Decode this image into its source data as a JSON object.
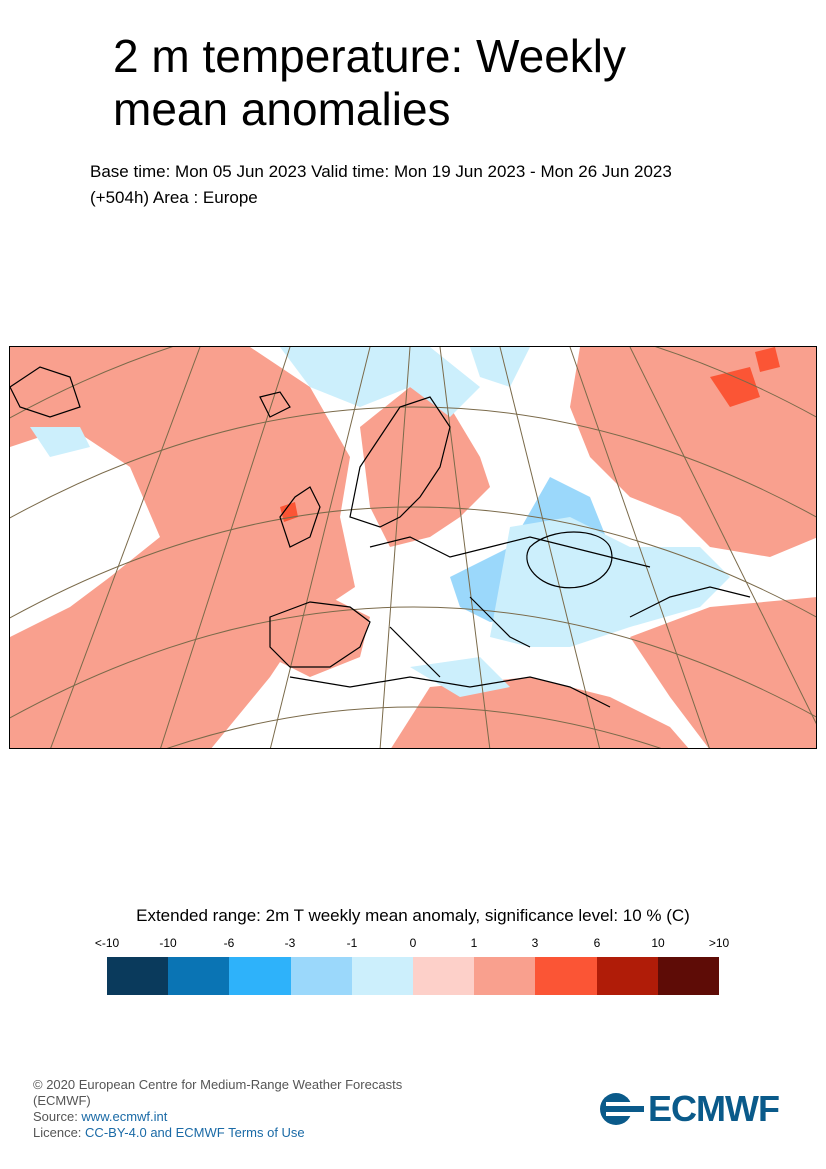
{
  "title": "2 m temperature: Weekly mean anomalies",
  "subtitle_line1": "Base time: Mon 05 Jun 2023 Valid time: Mon 19 Jun 2023 - Mon 26 Jun 2023",
  "subtitle_line2": "(+504h) Area : Europe",
  "map": {
    "area": "Europe"
  },
  "legend": {
    "title": "Extended range: 2m T weekly mean anomaly, significance level: 10 % (C)",
    "ticks": [
      "<-10",
      "-10",
      "-6",
      "-3",
      "-1",
      "0",
      "1",
      "3",
      "6",
      "10",
      ">10"
    ],
    "colors": [
      "#0a3a5c",
      "#0a74b4",
      "#2eb2fa",
      "#9bd8fb",
      "#cceffc",
      "#fdd0c9",
      "#f9a08e",
      "#fb5535",
      "#b01c08",
      "#5e0c06"
    ]
  },
  "footer": {
    "copyright": "© 2020 European Centre for Medium-Range Weather Forecasts",
    "org_abbr": "(ECMWF)",
    "source_label": "Source: ",
    "source_link": "www.ecmwf.int",
    "licence_label": "Licence: ",
    "licence_link": "CC-BY-4.0 and ECMWF Terms of Use"
  },
  "logo": {
    "text": "ECMWF",
    "color": "#0a5a8a"
  }
}
